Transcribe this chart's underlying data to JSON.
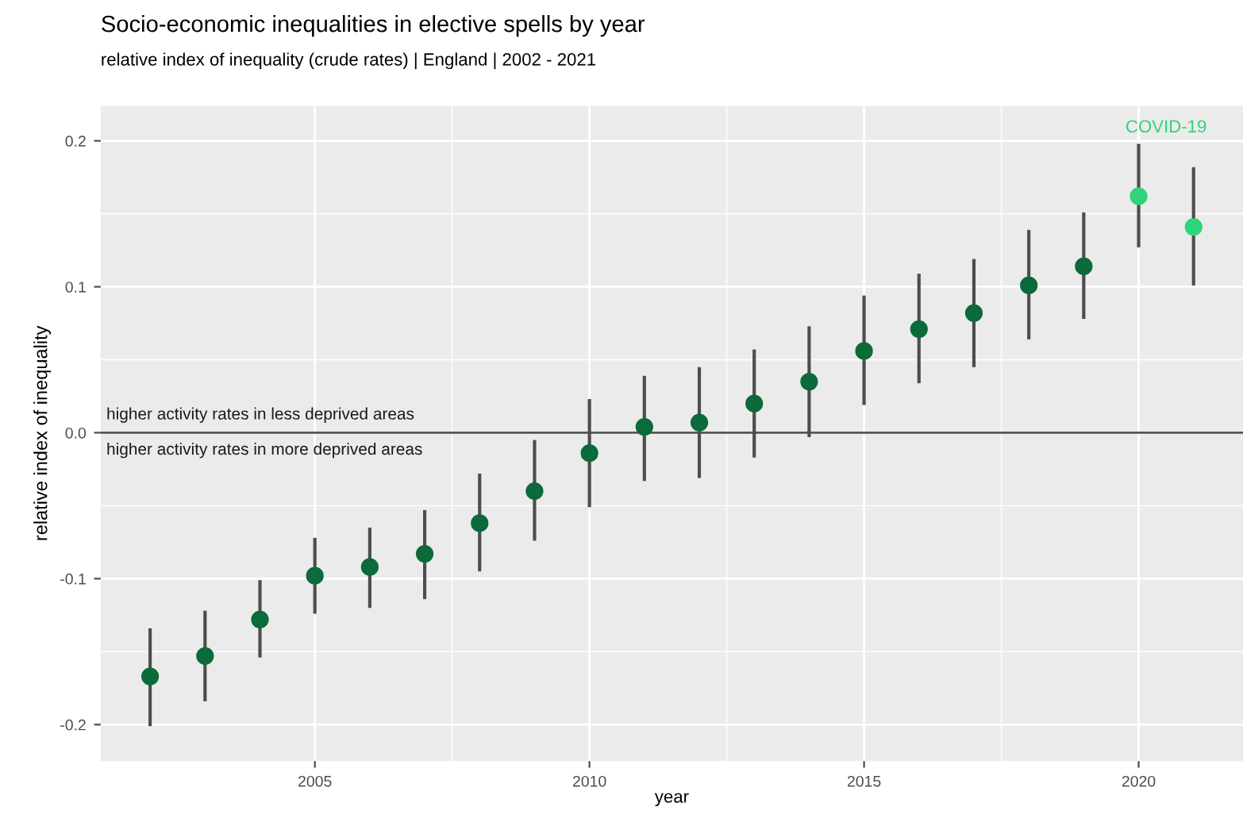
{
  "chart_data": {
    "type": "scatter",
    "title": "Socio-economic inequalities in elective spells by year",
    "subtitle": "relative index of inequality (crude rates) | England | 2002 - 2021",
    "xlabel": "year",
    "ylabel": "relative index of inequality",
    "series": [
      {
        "color": "#0b6b3a",
        "x": [
          2002,
          2003,
          2004,
          2005,
          2006,
          2007,
          2008,
          2009,
          2010,
          2011,
          2012,
          2013,
          2014,
          2015,
          2016,
          2017,
          2018,
          2019
        ],
        "values": [
          -0.167,
          -0.153,
          -0.128,
          -0.098,
          -0.092,
          -0.083,
          -0.062,
          -0.04,
          -0.014,
          0.004,
          0.007,
          0.02,
          0.035,
          0.056,
          0.071,
          0.082,
          0.101,
          0.114
        ],
        "errors": [
          [
            -0.201,
            -0.134
          ],
          [
            -0.184,
            -0.122
          ],
          [
            -0.154,
            -0.101
          ],
          [
            -0.124,
            -0.072
          ],
          [
            -0.12,
            -0.065
          ],
          [
            -0.114,
            -0.053
          ],
          [
            -0.095,
            -0.028
          ],
          [
            -0.074,
            -0.005
          ],
          [
            -0.051,
            0.023
          ],
          [
            -0.033,
            0.039
          ],
          [
            -0.031,
            0.045
          ],
          [
            -0.017,
            0.057
          ],
          [
            -0.003,
            0.073
          ],
          [
            0.019,
            0.094
          ],
          [
            0.034,
            0.109
          ],
          [
            0.045,
            0.119
          ],
          [
            0.064,
            0.139
          ],
          [
            0.078,
            0.151
          ]
        ]
      },
      {
        "color": "#2ed47a",
        "x": [
          2020,
          2021
        ],
        "values": [
          0.162,
          0.141
        ],
        "errors": [
          [
            0.127,
            0.198
          ],
          [
            0.101,
            0.182
          ]
        ]
      }
    ],
    "marker": "circle",
    "xlim": [
      2001.1,
      2021.9
    ],
    "ylim": [
      -0.225,
      0.224
    ],
    "xticks": [
      2005,
      2010,
      2015,
      2020
    ],
    "yticks": [
      -0.2,
      -0.1,
      {
        "value": 0,
        "label": "0.0"
      },
      0.1,
      0.2
    ],
    "grid": true,
    "ref_lines": [
      {
        "axis": "y",
        "value": 0,
        "color": "#555555"
      }
    ],
    "annotations": [
      "higher activity rates in less deprived areas",
      "higher activity rates in more deprived areas",
      "COVID-19"
    ]
  }
}
